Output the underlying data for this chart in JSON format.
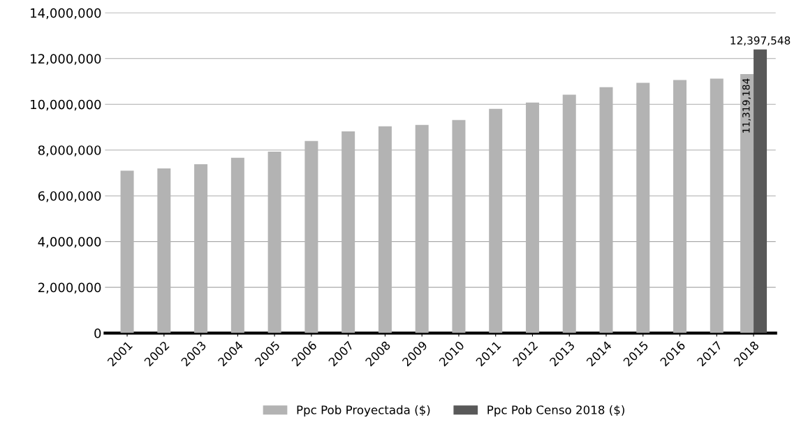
{
  "chart_data": {
    "type": "bar",
    "categories": [
      "2001",
      "2002",
      "2003",
      "2004",
      "2005",
      "2006",
      "2007",
      "2008",
      "2009",
      "2010",
      "2011",
      "2012",
      "2013",
      "2014",
      "2015",
      "2016",
      "2017",
      "2018"
    ],
    "series": [
      {
        "name": "Ppc Pob Proyectada ($)",
        "color": "#b3b3b3",
        "values": [
          7100000,
          7200000,
          7380000,
          7660000,
          7930000,
          8400000,
          8820000,
          9040000,
          9100000,
          9310000,
          9800000,
          10080000,
          10420000,
          10750000,
          10940000,
          11060000,
          11120000,
          11319184
        ],
        "value_labels": [
          null,
          null,
          null,
          null,
          null,
          null,
          null,
          null,
          null,
          null,
          null,
          null,
          null,
          null,
          null,
          null,
          null,
          "11,319,184"
        ]
      },
      {
        "name": "Ppc Pob Censo 2018 ($)",
        "color": "#595959",
        "values": [
          null,
          null,
          null,
          null,
          null,
          null,
          null,
          null,
          null,
          null,
          null,
          null,
          null,
          null,
          null,
          null,
          null,
          12397548
        ],
        "value_labels": [
          null,
          null,
          null,
          null,
          null,
          null,
          null,
          null,
          null,
          null,
          null,
          null,
          null,
          null,
          null,
          null,
          null,
          "12,397,548"
        ]
      }
    ],
    "ylim": [
      0,
      14000000
    ],
    "yticks": [
      0,
      {
        "value": 2000000,
        "label": "2,000,000"
      },
      {
        "value": 4000000,
        "label": "4,000,000"
      },
      {
        "value": 6000000,
        "label": "6,000,000"
      },
      {
        "value": 8000000,
        "label": "8,000,000"
      },
      {
        "value": 10000000,
        "label": "10,000,000"
      },
      {
        "value": 12000000,
        "label": "12,000,000"
      },
      {
        "value": 14000000,
        "label": "14,000,000"
      }
    ],
    "grid": "y",
    "legend": "bottom"
  }
}
